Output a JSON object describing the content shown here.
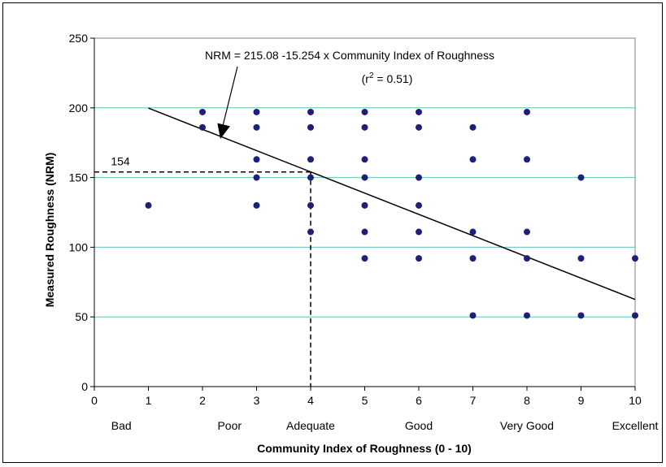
{
  "chart_data": {
    "type": "scatter",
    "xlabel": "Community Index of Roughness (0 - 10)",
    "ylabel": "Measured Roughness (NRM)",
    "xlim": [
      0,
      10
    ],
    "ylim": [
      0,
      250
    ],
    "x_ticks": [
      "0",
      "1",
      "2",
      "3",
      "4",
      "5",
      "6",
      "7",
      "8",
      "9",
      "10"
    ],
    "y_ticks": [
      "0",
      "50",
      "100",
      "150",
      "200",
      "250"
    ],
    "category_labels": [
      {
        "x": 0.5,
        "text": "Bad"
      },
      {
        "x": 2.5,
        "text": "Poor"
      },
      {
        "x": 4.0,
        "text": "Adequate"
      },
      {
        "x": 6.0,
        "text": "Good"
      },
      {
        "x": 8.0,
        "text": "Very Good"
      },
      {
        "x": 10.0,
        "text": "Excellent"
      }
    ],
    "grid": {
      "horizontal": true,
      "color": "#5BC0C0"
    },
    "points": [
      [
        1,
        130
      ],
      [
        2,
        197
      ],
      [
        2,
        186
      ],
      [
        3,
        197
      ],
      [
        3,
        186
      ],
      [
        3,
        163
      ],
      [
        3,
        150
      ],
      [
        3,
        130
      ],
      [
        4,
        197
      ],
      [
        4,
        186
      ],
      [
        4,
        163
      ],
      [
        4,
        150
      ],
      [
        4,
        130
      ],
      [
        4,
        111
      ],
      [
        5,
        197
      ],
      [
        5,
        186
      ],
      [
        5,
        163
      ],
      [
        5,
        150
      ],
      [
        5,
        130
      ],
      [
        5,
        111
      ],
      [
        5,
        92
      ],
      [
        6,
        197
      ],
      [
        6,
        186
      ],
      [
        6,
        150
      ],
      [
        6,
        130
      ],
      [
        6,
        111
      ],
      [
        6,
        92
      ],
      [
        7,
        186
      ],
      [
        7,
        163
      ],
      [
        7,
        111
      ],
      [
        7,
        92
      ],
      [
        7,
        51
      ],
      [
        8,
        197
      ],
      [
        8,
        163
      ],
      [
        8,
        111
      ],
      [
        8,
        92
      ],
      [
        8,
        51
      ],
      [
        9,
        150
      ],
      [
        9,
        92
      ],
      [
        9,
        51
      ],
      [
        10,
        92
      ],
      [
        10,
        51
      ]
    ],
    "point_color": "#1F1F7A",
    "regression": {
      "intercept": 215.08,
      "slope": -15.254,
      "x_range": [
        1,
        10
      ],
      "equation_label": "NRM = 215.08 -15.254 x Community Index of Roughness",
      "r2_prefix": "(r",
      "r2_sup": "2",
      "r2_suffix": " = 0.51)"
    },
    "reference": {
      "x": 4,
      "y": 154,
      "label": "154"
    }
  }
}
